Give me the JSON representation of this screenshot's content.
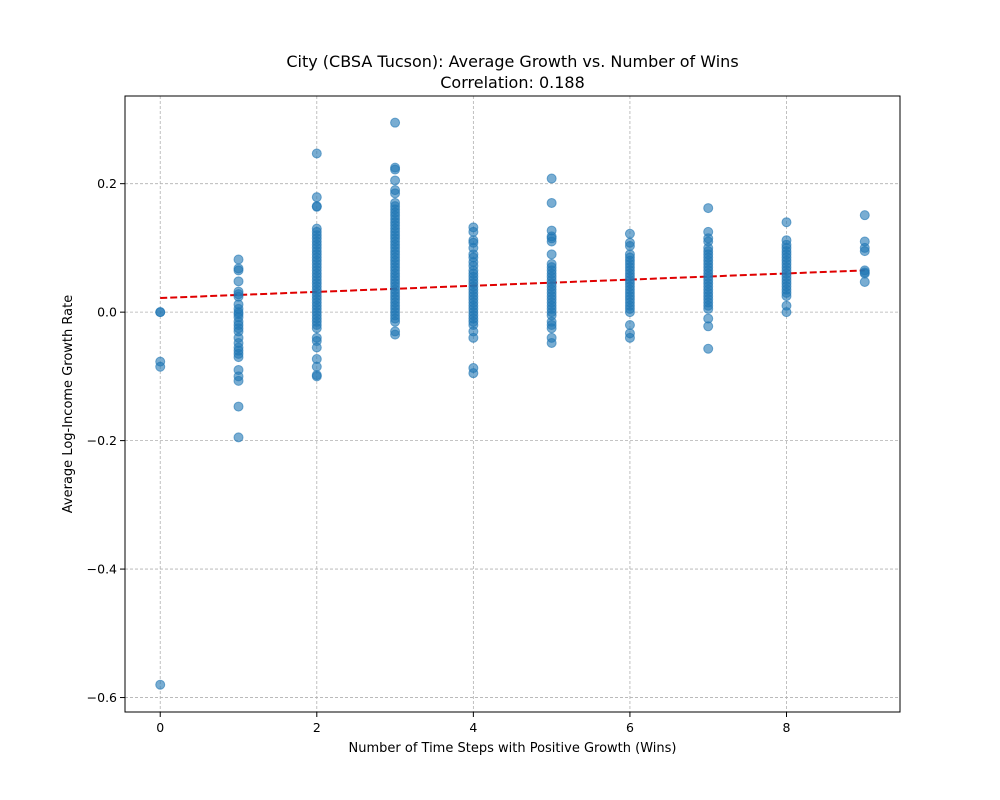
{
  "chart_data": {
    "type": "scatter",
    "title": "City (CBSA Tucson): Average Growth vs. Number of Wins",
    "subtitle": "Correlation: 0.188",
    "xlabel": "Number of Time Steps with Positive Growth (Wins)",
    "ylabel": "Average Log-Income Growth Rate",
    "xlim": [
      -0.45,
      9.45
    ],
    "ylim": [
      -0.6225,
      0.3365
    ],
    "x_ticks": [
      0,
      2,
      4,
      6,
      8
    ],
    "x_tick_labels": [
      "0",
      "2",
      "4",
      "6",
      "8"
    ],
    "y_ticks": [
      -0.6,
      -0.4,
      -0.2,
      0.0,
      0.2
    ],
    "y_tick_labels": [
      "−0.6",
      "−0.4",
      "−0.2",
      "0.0",
      "0.2"
    ],
    "grid": true,
    "point_color": "#1f77b4",
    "point_opacity": 0.6,
    "trend_color": "#e00000",
    "trend_line": {
      "x": [
        0,
        9
      ],
      "y": [
        0.022,
        0.065
      ]
    },
    "points": [
      {
        "x": 0,
        "y": 0.0
      },
      {
        "x": 0,
        "y": 0.0
      },
      {
        "x": 0,
        "y": -0.077
      },
      {
        "x": 0,
        "y": -0.085
      },
      {
        "x": 0,
        "y": -0.58
      },
      {
        "x": 1,
        "y": 0.082
      },
      {
        "x": 1,
        "y": 0.068
      },
      {
        "x": 1,
        "y": 0.065
      },
      {
        "x": 1,
        "y": 0.048
      },
      {
        "x": 1,
        "y": 0.032
      },
      {
        "x": 1,
        "y": 0.028
      },
      {
        "x": 1,
        "y": 0.024
      },
      {
        "x": 1,
        "y": 0.012
      },
      {
        "x": 1,
        "y": 0.005
      },
      {
        "x": 1,
        "y": 0.0
      },
      {
        "x": 1,
        "y": -0.003
      },
      {
        "x": 1,
        "y": -0.008
      },
      {
        "x": 1,
        "y": -0.015
      },
      {
        "x": 1,
        "y": -0.02
      },
      {
        "x": 1,
        "y": -0.025
      },
      {
        "x": 1,
        "y": -0.03
      },
      {
        "x": 1,
        "y": -0.04
      },
      {
        "x": 1,
        "y": -0.048
      },
      {
        "x": 1,
        "y": -0.055
      },
      {
        "x": 1,
        "y": -0.06
      },
      {
        "x": 1,
        "y": -0.065
      },
      {
        "x": 1,
        "y": -0.07
      },
      {
        "x": 1,
        "y": -0.09
      },
      {
        "x": 1,
        "y": -0.1
      },
      {
        "x": 1,
        "y": -0.107
      },
      {
        "x": 1,
        "y": -0.147
      },
      {
        "x": 1,
        "y": -0.195
      },
      {
        "x": 2,
        "y": 0.247
      },
      {
        "x": 2,
        "y": 0.179
      },
      {
        "x": 2,
        "y": 0.165
      },
      {
        "x": 2,
        "y": 0.164
      },
      {
        "x": 2,
        "y": 0.13
      },
      {
        "x": 2,
        "y": 0.125
      },
      {
        "x": 2,
        "y": 0.12
      },
      {
        "x": 2,
        "y": 0.115
      },
      {
        "x": 2,
        "y": 0.11
      },
      {
        "x": 2,
        "y": 0.105
      },
      {
        "x": 2,
        "y": 0.1
      },
      {
        "x": 2,
        "y": 0.095
      },
      {
        "x": 2,
        "y": 0.09
      },
      {
        "x": 2,
        "y": 0.085
      },
      {
        "x": 2,
        "y": 0.08
      },
      {
        "x": 2,
        "y": 0.075
      },
      {
        "x": 2,
        "y": 0.07
      },
      {
        "x": 2,
        "y": 0.065
      },
      {
        "x": 2,
        "y": 0.06
      },
      {
        "x": 2,
        "y": 0.055
      },
      {
        "x": 2,
        "y": 0.05
      },
      {
        "x": 2,
        "y": 0.045
      },
      {
        "x": 2,
        "y": 0.04
      },
      {
        "x": 2,
        "y": 0.035
      },
      {
        "x": 2,
        "y": 0.03
      },
      {
        "x": 2,
        "y": 0.025
      },
      {
        "x": 2,
        "y": 0.02
      },
      {
        "x": 2,
        "y": 0.015
      },
      {
        "x": 2,
        "y": 0.01
      },
      {
        "x": 2,
        "y": 0.005
      },
      {
        "x": 2,
        "y": 0.0
      },
      {
        "x": 2,
        "y": -0.005
      },
      {
        "x": 2,
        "y": -0.01
      },
      {
        "x": 2,
        "y": -0.015
      },
      {
        "x": 2,
        "y": -0.02
      },
      {
        "x": 2,
        "y": -0.025
      },
      {
        "x": 2,
        "y": -0.04
      },
      {
        "x": 2,
        "y": -0.045
      },
      {
        "x": 2,
        "y": -0.055
      },
      {
        "x": 2,
        "y": -0.073
      },
      {
        "x": 2,
        "y": -0.085
      },
      {
        "x": 2,
        "y": -0.098
      },
      {
        "x": 2,
        "y": -0.1
      },
      {
        "x": 3,
        "y": 0.295
      },
      {
        "x": 3,
        "y": 0.225
      },
      {
        "x": 3,
        "y": 0.222
      },
      {
        "x": 3,
        "y": 0.205
      },
      {
        "x": 3,
        "y": 0.19
      },
      {
        "x": 3,
        "y": 0.185
      },
      {
        "x": 3,
        "y": 0.17
      },
      {
        "x": 3,
        "y": 0.165
      },
      {
        "x": 3,
        "y": 0.16
      },
      {
        "x": 3,
        "y": 0.155
      },
      {
        "x": 3,
        "y": 0.15
      },
      {
        "x": 3,
        "y": 0.145
      },
      {
        "x": 3,
        "y": 0.14
      },
      {
        "x": 3,
        "y": 0.135
      },
      {
        "x": 3,
        "y": 0.13
      },
      {
        "x": 3,
        "y": 0.125
      },
      {
        "x": 3,
        "y": 0.12
      },
      {
        "x": 3,
        "y": 0.115
      },
      {
        "x": 3,
        "y": 0.11
      },
      {
        "x": 3,
        "y": 0.105
      },
      {
        "x": 3,
        "y": 0.1
      },
      {
        "x": 3,
        "y": 0.095
      },
      {
        "x": 3,
        "y": 0.09
      },
      {
        "x": 3,
        "y": 0.085
      },
      {
        "x": 3,
        "y": 0.08
      },
      {
        "x": 3,
        "y": 0.075
      },
      {
        "x": 3,
        "y": 0.07
      },
      {
        "x": 3,
        "y": 0.065
      },
      {
        "x": 3,
        "y": 0.06
      },
      {
        "x": 3,
        "y": 0.055
      },
      {
        "x": 3,
        "y": 0.05
      },
      {
        "x": 3,
        "y": 0.045
      },
      {
        "x": 3,
        "y": 0.04
      },
      {
        "x": 3,
        "y": 0.035
      },
      {
        "x": 3,
        "y": 0.03
      },
      {
        "x": 3,
        "y": 0.025
      },
      {
        "x": 3,
        "y": 0.02
      },
      {
        "x": 3,
        "y": 0.015
      },
      {
        "x": 3,
        "y": 0.01
      },
      {
        "x": 3,
        "y": 0.005
      },
      {
        "x": 3,
        "y": 0.0
      },
      {
        "x": 3,
        "y": -0.005
      },
      {
        "x": 3,
        "y": -0.01
      },
      {
        "x": 3,
        "y": -0.015
      },
      {
        "x": 3,
        "y": -0.03
      },
      {
        "x": 3,
        "y": -0.035
      },
      {
        "x": 4,
        "y": 0.132
      },
      {
        "x": 4,
        "y": 0.125
      },
      {
        "x": 4,
        "y": 0.112
      },
      {
        "x": 4,
        "y": 0.108
      },
      {
        "x": 4,
        "y": 0.1
      },
      {
        "x": 4,
        "y": 0.09
      },
      {
        "x": 4,
        "y": 0.085
      },
      {
        "x": 4,
        "y": 0.078
      },
      {
        "x": 4,
        "y": 0.072
      },
      {
        "x": 4,
        "y": 0.065
      },
      {
        "x": 4,
        "y": 0.06
      },
      {
        "x": 4,
        "y": 0.055
      },
      {
        "x": 4,
        "y": 0.05
      },
      {
        "x": 4,
        "y": 0.045
      },
      {
        "x": 4,
        "y": 0.04
      },
      {
        "x": 4,
        "y": 0.035
      },
      {
        "x": 4,
        "y": 0.03
      },
      {
        "x": 4,
        "y": 0.025
      },
      {
        "x": 4,
        "y": 0.02
      },
      {
        "x": 4,
        "y": 0.015
      },
      {
        "x": 4,
        "y": 0.01
      },
      {
        "x": 4,
        "y": 0.005
      },
      {
        "x": 4,
        "y": 0.0
      },
      {
        "x": 4,
        "y": -0.005
      },
      {
        "x": 4,
        "y": -0.01
      },
      {
        "x": 4,
        "y": -0.015
      },
      {
        "x": 4,
        "y": -0.02
      },
      {
        "x": 4,
        "y": -0.03
      },
      {
        "x": 4,
        "y": -0.04
      },
      {
        "x": 4,
        "y": -0.087
      },
      {
        "x": 4,
        "y": -0.095
      },
      {
        "x": 5,
        "y": 0.208
      },
      {
        "x": 5,
        "y": 0.17
      },
      {
        "x": 5,
        "y": 0.127
      },
      {
        "x": 5,
        "y": 0.118
      },
      {
        "x": 5,
        "y": 0.115
      },
      {
        "x": 5,
        "y": 0.11
      },
      {
        "x": 5,
        "y": 0.09
      },
      {
        "x": 5,
        "y": 0.075
      },
      {
        "x": 5,
        "y": 0.07
      },
      {
        "x": 5,
        "y": 0.065
      },
      {
        "x": 5,
        "y": 0.06
      },
      {
        "x": 5,
        "y": 0.055
      },
      {
        "x": 5,
        "y": 0.05
      },
      {
        "x": 5,
        "y": 0.045
      },
      {
        "x": 5,
        "y": 0.04
      },
      {
        "x": 5,
        "y": 0.035
      },
      {
        "x": 5,
        "y": 0.03
      },
      {
        "x": 5,
        "y": 0.025
      },
      {
        "x": 5,
        "y": 0.02
      },
      {
        "x": 5,
        "y": 0.015
      },
      {
        "x": 5,
        "y": 0.01
      },
      {
        "x": 5,
        "y": 0.005
      },
      {
        "x": 5,
        "y": 0.0
      },
      {
        "x": 5,
        "y": -0.005
      },
      {
        "x": 5,
        "y": -0.015
      },
      {
        "x": 5,
        "y": -0.02
      },
      {
        "x": 5,
        "y": -0.025
      },
      {
        "x": 5,
        "y": -0.04
      },
      {
        "x": 5,
        "y": -0.048
      },
      {
        "x": 6,
        "y": 0.122
      },
      {
        "x": 6,
        "y": 0.108
      },
      {
        "x": 6,
        "y": 0.103
      },
      {
        "x": 6,
        "y": 0.09
      },
      {
        "x": 6,
        "y": 0.085
      },
      {
        "x": 6,
        "y": 0.08
      },
      {
        "x": 6,
        "y": 0.075
      },
      {
        "x": 6,
        "y": 0.07
      },
      {
        "x": 6,
        "y": 0.065
      },
      {
        "x": 6,
        "y": 0.06
      },
      {
        "x": 6,
        "y": 0.055
      },
      {
        "x": 6,
        "y": 0.05
      },
      {
        "x": 6,
        "y": 0.045
      },
      {
        "x": 6,
        "y": 0.04
      },
      {
        "x": 6,
        "y": 0.035
      },
      {
        "x": 6,
        "y": 0.03
      },
      {
        "x": 6,
        "y": 0.025
      },
      {
        "x": 6,
        "y": 0.02
      },
      {
        "x": 6,
        "y": 0.015
      },
      {
        "x": 6,
        "y": 0.01
      },
      {
        "x": 6,
        "y": 0.005
      },
      {
        "x": 6,
        "y": 0.0
      },
      {
        "x": 6,
        "y": -0.02
      },
      {
        "x": 6,
        "y": -0.033
      },
      {
        "x": 6,
        "y": -0.04
      },
      {
        "x": 7,
        "y": 0.162
      },
      {
        "x": 7,
        "y": 0.125
      },
      {
        "x": 7,
        "y": 0.115
      },
      {
        "x": 7,
        "y": 0.11
      },
      {
        "x": 7,
        "y": 0.1
      },
      {
        "x": 7,
        "y": 0.095
      },
      {
        "x": 7,
        "y": 0.09
      },
      {
        "x": 7,
        "y": 0.085
      },
      {
        "x": 7,
        "y": 0.08
      },
      {
        "x": 7,
        "y": 0.075
      },
      {
        "x": 7,
        "y": 0.07
      },
      {
        "x": 7,
        "y": 0.065
      },
      {
        "x": 7,
        "y": 0.06
      },
      {
        "x": 7,
        "y": 0.055
      },
      {
        "x": 7,
        "y": 0.05
      },
      {
        "x": 7,
        "y": 0.045
      },
      {
        "x": 7,
        "y": 0.04
      },
      {
        "x": 7,
        "y": 0.035
      },
      {
        "x": 7,
        "y": 0.03
      },
      {
        "x": 7,
        "y": 0.025
      },
      {
        "x": 7,
        "y": 0.02
      },
      {
        "x": 7,
        "y": 0.015
      },
      {
        "x": 7,
        "y": 0.01
      },
      {
        "x": 7,
        "y": 0.005
      },
      {
        "x": 7,
        "y": -0.01
      },
      {
        "x": 7,
        "y": -0.022
      },
      {
        "x": 7,
        "y": -0.057
      },
      {
        "x": 8,
        "y": 0.14
      },
      {
        "x": 8,
        "y": 0.112
      },
      {
        "x": 8,
        "y": 0.105
      },
      {
        "x": 8,
        "y": 0.1
      },
      {
        "x": 8,
        "y": 0.095
      },
      {
        "x": 8,
        "y": 0.09
      },
      {
        "x": 8,
        "y": 0.085
      },
      {
        "x": 8,
        "y": 0.08
      },
      {
        "x": 8,
        "y": 0.075
      },
      {
        "x": 8,
        "y": 0.07
      },
      {
        "x": 8,
        "y": 0.065
      },
      {
        "x": 8,
        "y": 0.06
      },
      {
        "x": 8,
        "y": 0.055
      },
      {
        "x": 8,
        "y": 0.05
      },
      {
        "x": 8,
        "y": 0.045
      },
      {
        "x": 8,
        "y": 0.04
      },
      {
        "x": 8,
        "y": 0.035
      },
      {
        "x": 8,
        "y": 0.03
      },
      {
        "x": 8,
        "y": 0.025
      },
      {
        "x": 8,
        "y": 0.01
      },
      {
        "x": 8,
        "y": 0.0
      },
      {
        "x": 9,
        "y": 0.151
      },
      {
        "x": 9,
        "y": 0.11
      },
      {
        "x": 9,
        "y": 0.1
      },
      {
        "x": 9,
        "y": 0.095
      },
      {
        "x": 9,
        "y": 0.065
      },
      {
        "x": 9,
        "y": 0.062
      },
      {
        "x": 9,
        "y": 0.06
      },
      {
        "x": 9,
        "y": 0.047
      }
    ]
  }
}
